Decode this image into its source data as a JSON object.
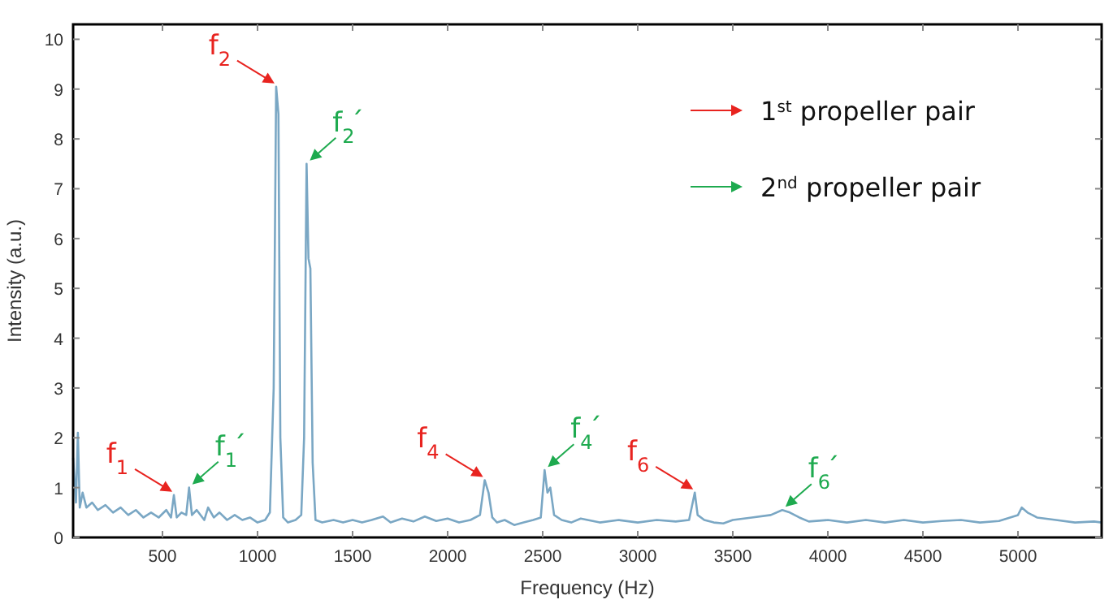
{
  "chart_data": {
    "type": "line",
    "xlabel": "Frequency (Hz)",
    "ylabel": "Intensity (a.u.)",
    "xlim": [
      30,
      5440
    ],
    "ylim": [
      0,
      10.3
    ],
    "xticks": [
      500,
      1000,
      1500,
      2000,
      2500,
      3000,
      3500,
      4000,
      4500,
      5000
    ],
    "yticks": [
      0,
      1,
      2,
      3,
      4,
      5,
      6,
      7,
      8,
      9,
      10
    ],
    "grid": false,
    "marker": "none",
    "line_style": "solid",
    "series": [
      {
        "color": "#7aa7c4",
        "x": [
          30,
          45,
          55,
          65,
          80,
          100,
          130,
          160,
          200,
          240,
          280,
          320,
          360,
          400,
          440,
          480,
          520,
          545,
          560,
          575,
          600,
          625,
          640,
          655,
          680,
          720,
          740,
          770,
          800,
          840,
          880,
          920,
          960,
          1000,
          1040,
          1065,
          1085,
          1098,
          1110,
          1120,
          1135,
          1160,
          1200,
          1230,
          1245,
          1258,
          1268,
          1278,
          1290,
          1305,
          1340,
          1400,
          1450,
          1500,
          1550,
          1600,
          1660,
          1700,
          1760,
          1820,
          1880,
          1940,
          2000,
          2060,
          2120,
          2170,
          2195,
          2215,
          2235,
          2260,
          2300,
          2350,
          2400,
          2450,
          2490,
          2510,
          2525,
          2540,
          2560,
          2600,
          2650,
          2700,
          2800,
          2900,
          3000,
          3100,
          3200,
          3270,
          3300,
          3315,
          3350,
          3400,
          3450,
          3500,
          3600,
          3700,
          3760,
          3800,
          3850,
          3900,
          4000,
          4100,
          4200,
          4300,
          4400,
          4500,
          4600,
          4700,
          4800,
          4900,
          5000,
          5020,
          5050,
          5100,
          5200,
          5300,
          5400,
          5440
        ],
        "values": [
          1.6,
          0.7,
          2.1,
          0.6,
          0.9,
          0.6,
          0.7,
          0.55,
          0.65,
          0.5,
          0.6,
          0.45,
          0.55,
          0.4,
          0.5,
          0.4,
          0.55,
          0.4,
          0.85,
          0.4,
          0.5,
          0.45,
          1.0,
          0.45,
          0.55,
          0.35,
          0.6,
          0.4,
          0.5,
          0.35,
          0.45,
          0.35,
          0.4,
          0.3,
          0.35,
          0.5,
          3.0,
          9.05,
          8.5,
          2.0,
          0.4,
          0.3,
          0.35,
          0.45,
          2.0,
          7.5,
          5.6,
          5.4,
          1.5,
          0.35,
          0.3,
          0.35,
          0.3,
          0.35,
          0.3,
          0.35,
          0.42,
          0.3,
          0.38,
          0.32,
          0.42,
          0.33,
          0.38,
          0.3,
          0.35,
          0.45,
          1.15,
          0.9,
          0.4,
          0.3,
          0.35,
          0.25,
          0.3,
          0.35,
          0.4,
          1.35,
          0.9,
          1.0,
          0.45,
          0.35,
          0.3,
          0.38,
          0.3,
          0.35,
          0.3,
          0.35,
          0.32,
          0.35,
          0.9,
          0.45,
          0.35,
          0.3,
          0.28,
          0.35,
          0.4,
          0.45,
          0.55,
          0.5,
          0.4,
          0.32,
          0.35,
          0.3,
          0.35,
          0.3,
          0.35,
          0.3,
          0.33,
          0.35,
          0.3,
          0.33,
          0.45,
          0.6,
          0.5,
          0.4,
          0.35,
          0.3,
          0.32,
          0.3
        ]
      }
    ],
    "annotations": [
      {
        "text": "f$_{1}$",
        "x": 560,
        "y": 0.85
      },
      {
        "text": "f$_{1}$´",
        "x": 640,
        "y": 1.0
      },
      {
        "text": "f$_{2}$",
        "x": 1098,
        "y": 9.05
      },
      {
        "text": "f$_{2}$´",
        "x": 1258,
        "y": 7.5
      },
      {
        "text": "f$_{4}$",
        "x": 2195,
        "y": 1.15
      },
      {
        "text": "f$_{4}$´",
        "x": 2510,
        "y": 1.35
      },
      {
        "text": "f$_{6}$",
        "x": 3300,
        "y": 0.9
      },
      {
        "text": "f$_{6}$´",
        "x": 3760,
        "y": 0.55
      },
      "1$^{st}$ propeller pair",
      "2$^{nd}$ propeller pair"
    ]
  }
}
